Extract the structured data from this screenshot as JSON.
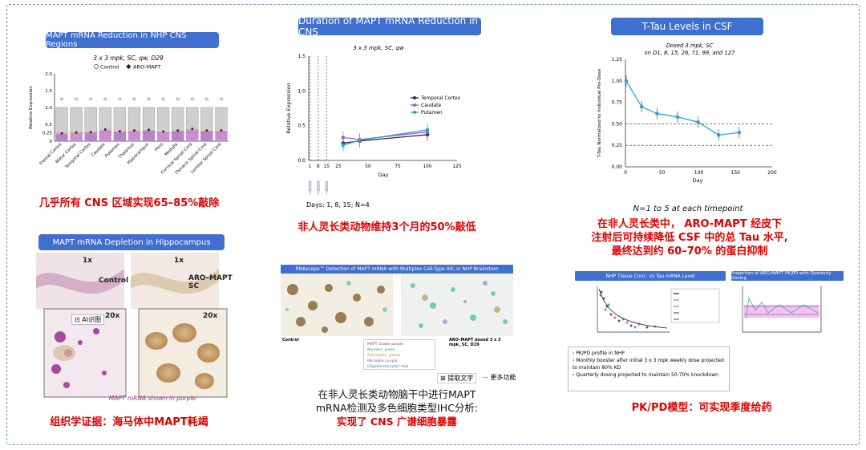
{
  "captions": {
    "p1": "几乎所有 CNS 区域实现65–85%敲除",
    "p2": "非人灵长类动物维持3个月的50%敲低",
    "p3_l1": "在非人灵长类中， ARO-MAPT 经皮下",
    "p3_l2": "注射后可持续降低 CSF 中的总 Tau 水平,",
    "p3_l3": "最终达到约 60–70% 的蛋白抑制",
    "p4": "组织学证据：海马体中MAPT耗竭",
    "p5_l1": "在非人灵长类动物脑干中进行MAPT",
    "p5_l2": "mRNA检测及多色细胞类型IHC分析:",
    "p5_l3": "实现了 CNS 广谱细胞暴露",
    "p6": "PK/PD模型：可实现季度给药"
  },
  "panel_titles": {
    "p1": "MAPT mRNA Reduction in NHP CNS Regions",
    "p2": "Duration of MAPT mRNA Reduction in CNS",
    "p3": "T-Tau Levels in CSF",
    "p4": "MAPT mRNA Depletion in Hippocampus",
    "p5": "RNAscope™ Detection of MAPT mRNA with Multiplex Cell-Type IHC in NHP Brainstem",
    "p6a": "NHP Tissue Conc. vs Tau mRNA Level",
    "p6b": "Projection of ARO-MAPT PK/PD with Quarterly Dosing"
  },
  "p1": {
    "subtitle": "3 x 3 mpk, SC, qw, D29",
    "legend": [
      "Control",
      "ARO-MAPT"
    ]
  },
  "p2": {
    "subtitle": "3 x 3 mpk, SC, qw",
    "days_label": "Days: 1, 8, 15; N=4"
  },
  "p3": {
    "subtitle_l1": "Dosed 3 mpk, SC",
    "subtitle_l2": "on D1, 8, 15, 26, 71, 99, and 127",
    "footnote": "N=1 to 5 at each timepoint"
  },
  "p4": {
    "lab_1x_a": "1x",
    "lab_1x_b": "1x",
    "ctrl": "Control",
    "aro": "ARO–MAPT",
    "sc": "SC",
    "lab_20x_a": "20x",
    "lab_20x_b": "20x",
    "note": "MAPT mRNA shown in purple",
    "tool": "AI识图"
  },
  "p5": {
    "left_label": "Control",
    "right_label": "ARO–MAPT dosed 3 x 3 mpk, SC, D29",
    "legend": [
      "MAPT: brown purple",
      "Neurons: green",
      "Astrocytes: yellow",
      "Microglia: purple",
      "Oligodendrocytes: teal"
    ],
    "tool1": "提取文字",
    "tool2": "更多功能"
  },
  "p6": {
    "bullets": [
      "PK/PD profile in NHP",
      "Monthly booster after initial 3 x 3 mpk weekly dose projected to maintain 80% KD",
      "Quarterly dosing projected to maintain 50-70% knockdown"
    ]
  },
  "chart_data": [
    {
      "type": "bar",
      "title": "MAPT mRNA Reduction in NHP CNS Regions",
      "subtitle": "3 x 3 mpk, SC, qw, D29",
      "ylabel": "Relative Expression",
      "ylim": [
        0,
        2.0
      ],
      "yticks": [
        "0",
        "0.25",
        "0.5",
        "1.0",
        "1.5",
        "2.0"
      ],
      "categories": [
        "Frontal Cortex",
        "Motor Cortex",
        "Temporal Cortex",
        "Caudate",
        "Putamen",
        "Thalamus",
        "Hippocampus",
        "Pons",
        "Medulla",
        "Cervical Spinal Cord",
        "Thoracic Spinal Cord",
        "Lumbar Spinal Cord"
      ],
      "series": [
        {
          "name": "Control",
          "values": [
            1.0,
            1.0,
            1.0,
            1.0,
            1.0,
            1.0,
            1.0,
            1.0,
            1.0,
            1.0,
            1.0,
            1.0
          ]
        },
        {
          "name": "ARO-MAPT",
          "values": [
            0.22,
            0.24,
            0.25,
            0.33,
            0.28,
            0.3,
            0.32,
            0.27,
            0.3,
            0.35,
            0.3,
            0.3
          ]
        }
      ]
    },
    {
      "type": "line",
      "title": "Duration of MAPT mRNA Reduction in CNS",
      "subtitle": "3 x 3 mpk, SC, qw",
      "xlabel": "Day",
      "ylabel": "Relative Expression",
      "xlim": [
        0,
        125
      ],
      "ylim": [
        0,
        1.5
      ],
      "xticks": [
        "1",
        "8",
        "15",
        "25",
        "50",
        "75",
        "100",
        "125"
      ],
      "yticks": [
        "0.0",
        "0.5",
        "1.0",
        "1.5"
      ],
      "series": [
        {
          "name": "Temporal Cortex",
          "x": [
            29,
            43,
            100
          ],
          "y": [
            0.25,
            0.28,
            0.37
          ],
          "color": "#3a1f4f"
        },
        {
          "name": "Caudate",
          "x": [
            29,
            43,
            100
          ],
          "y": [
            0.33,
            0.3,
            0.41
          ],
          "color": "#a25ec0"
        },
        {
          "name": "Putamen",
          "x": [
            29,
            43,
            100
          ],
          "y": [
            0.22,
            0.29,
            0.44
          ],
          "color": "#2ca3c8"
        }
      ]
    },
    {
      "type": "line",
      "title": "T-Tau Levels in CSF",
      "xlabel": "Day",
      "ylabel": "T-Tau Normalized to Individual Pre-Dose",
      "xlim": [
        0,
        200
      ],
      "ylim": [
        0,
        1.25
      ],
      "xticks": [
        "0",
        "50",
        "100",
        "150",
        "200"
      ],
      "yticks": [
        "0.00",
        "0.25",
        "0.50",
        "0.75",
        "1.00",
        "1.25"
      ],
      "series": [
        {
          "name": "T-Tau",
          "x": [
            1,
            22,
            43,
            71,
            99,
            127,
            155
          ],
          "y": [
            1.0,
            0.7,
            0.62,
            0.58,
            0.52,
            0.37,
            0.4
          ],
          "color": "#2ca3e0"
        }
      ]
    }
  ]
}
